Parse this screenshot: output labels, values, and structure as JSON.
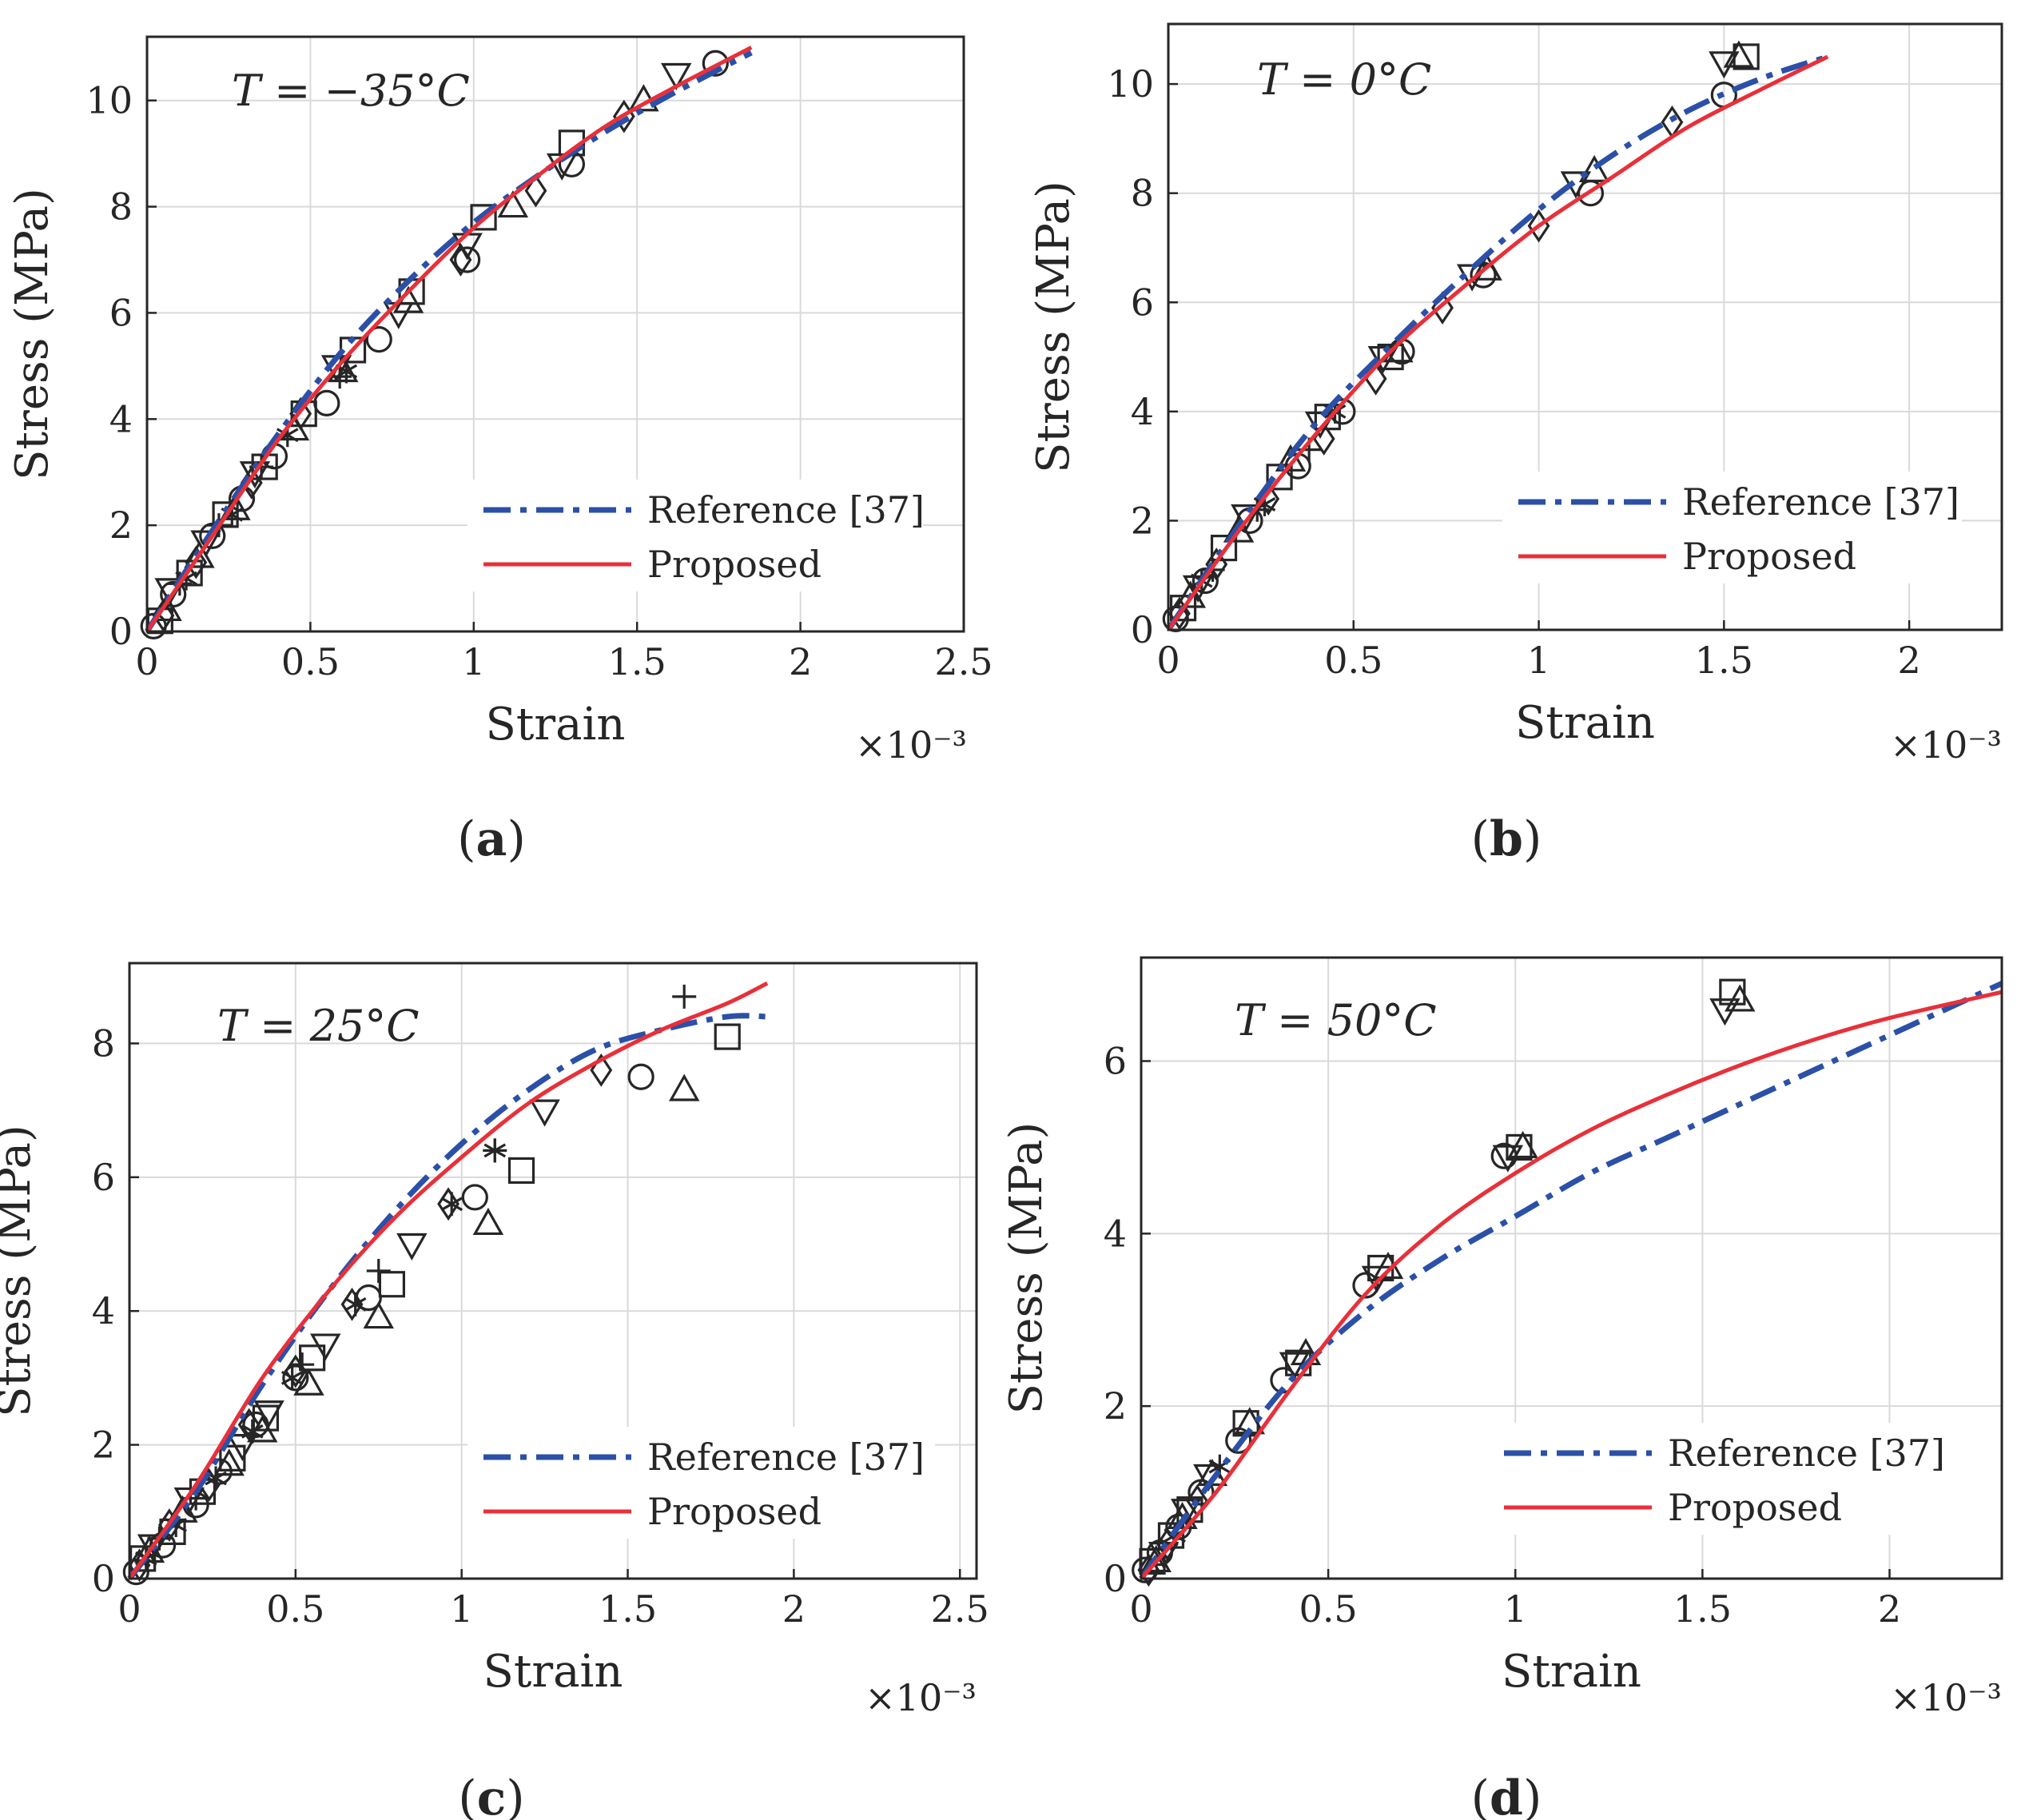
{
  "figure": {
    "panels": [
      "a",
      "b",
      "c",
      "d"
    ]
  },
  "chart_data": [
    {
      "panel": "a",
      "caption_letter": "a",
      "type": "line",
      "title_annotation": "T = −35°C",
      "xlabel": "Strain",
      "ylabel": "Stress (MPa)",
      "x_multiplier": "×10⁻³",
      "xlim": [
        0,
        2.5
      ],
      "ylim": [
        0,
        11.2
      ],
      "xticks": [
        0,
        0.5,
        1,
        1.5,
        2,
        2.5
      ],
      "xtick_labels": [
        "0",
        "0.5",
        "1",
        "1.5",
        "2",
        "2.5"
      ],
      "yticks": [
        0,
        2,
        4,
        6,
        8,
        10
      ],
      "ytick_labels": [
        "0",
        "2",
        "4",
        "6",
        "8",
        "10"
      ],
      "grid": true,
      "legend_position": "bottom-right",
      "series": [
        {
          "name": "Reference [37]",
          "style": "dashdot",
          "color": "#2B50A8",
          "x": [
            0,
            0.2,
            0.4,
            0.6,
            0.8,
            1.0,
            1.2,
            1.4,
            1.6,
            1.85
          ],
          "y": [
            0,
            1.9,
            3.7,
            5.3,
            6.6,
            7.7,
            8.6,
            9.4,
            10.1,
            10.9
          ]
        },
        {
          "name": "Proposed",
          "style": "solid",
          "color": "#E8303A",
          "x": [
            0,
            0.2,
            0.4,
            0.6,
            0.8,
            1.0,
            1.2,
            1.4,
            1.6,
            1.85
          ],
          "y": [
            0,
            1.8,
            3.6,
            5.1,
            6.4,
            7.6,
            8.6,
            9.5,
            10.2,
            11.0
          ]
        }
      ],
      "markers": [
        {
          "m": "o",
          "x": [
            0.02,
            0.08,
            0.2,
            0.29,
            0.39,
            0.55,
            0.71,
            0.98,
            1.3,
            1.74
          ],
          "y": [
            0.1,
            0.7,
            1.8,
            2.5,
            3.3,
            4.3,
            5.5,
            7.0,
            8.8,
            10.7
          ]
        },
        {
          "m": "s",
          "x": [
            0.04,
            0.13,
            0.24,
            0.36,
            0.48,
            0.63,
            0.81,
            1.03,
            1.3
          ],
          "y": [
            0.2,
            1.1,
            2.2,
            3.1,
            4.1,
            5.3,
            6.4,
            7.8,
            9.2
          ]
        },
        {
          "m": "^",
          "x": [
            0.06,
            0.16,
            0.27,
            0.45,
            0.6,
            0.8,
            1.12,
            1.52
          ],
          "y": [
            0.4,
            1.4,
            2.3,
            3.8,
            4.9,
            6.2,
            8.0,
            10.0
          ]
        },
        {
          "m": "v",
          "x": [
            0.07,
            0.18,
            0.33,
            0.58,
            0.77,
            0.98,
            1.27,
            1.62
          ],
          "y": [
            0.8,
            1.7,
            3.0,
            5.0,
            6.0,
            7.3,
            8.8,
            10.5
          ]
        },
        {
          "m": "d",
          "x": [
            0.05,
            0.15,
            0.32,
            0.47,
            0.96,
            1.19,
            1.46
          ],
          "y": [
            0.3,
            1.3,
            2.8,
            4.1,
            7.0,
            8.3,
            9.7
          ]
        },
        {
          "m": "+",
          "x": [
            0.1,
            0.22,
            0.35,
            0.59
          ],
          "y": [
            0.9,
            2.0,
            3.1,
            4.8
          ]
        },
        {
          "m": "*",
          "x": [
            0.12,
            0.26,
            0.43,
            0.61
          ],
          "y": [
            1.0,
            2.2,
            3.7,
            4.9
          ]
        }
      ]
    },
    {
      "panel": "b",
      "caption_letter": "b",
      "type": "line",
      "title_annotation": "T = 0°C",
      "xlabel": "Strain",
      "ylabel": "Stress (MPa)",
      "x_multiplier": "×10⁻³",
      "xlim": [
        0,
        2.25
      ],
      "ylim": [
        0,
        11.1
      ],
      "xticks": [
        0,
        0.5,
        1,
        1.5,
        2
      ],
      "xtick_labels": [
        "0",
        "0.5",
        "1",
        "1.5",
        "2"
      ],
      "yticks": [
        0,
        2,
        4,
        6,
        8,
        10
      ],
      "ytick_labels": [
        "0",
        "2",
        "4",
        "6",
        "8",
        "10"
      ],
      "grid": true,
      "legend_position": "bottom-right",
      "series": [
        {
          "name": "Reference [37]",
          "style": "dashdot",
          "color": "#2B50A8",
          "x": [
            0,
            0.2,
            0.4,
            0.6,
            0.8,
            1.0,
            1.2,
            1.4,
            1.6,
            1.78
          ],
          "y": [
            0,
            2.0,
            3.8,
            5.2,
            6.5,
            7.7,
            8.7,
            9.5,
            10.1,
            10.5
          ]
        },
        {
          "name": "Proposed",
          "style": "solid",
          "color": "#E8303A",
          "x": [
            0,
            0.2,
            0.4,
            0.6,
            0.8,
            1.0,
            1.2,
            1.4,
            1.6,
            1.78
          ],
          "y": [
            0,
            1.9,
            3.6,
            5.1,
            6.3,
            7.4,
            8.3,
            9.2,
            9.9,
            10.5
          ]
        }
      ],
      "markers": [
        {
          "m": "o",
          "x": [
            0.02,
            0.1,
            0.22,
            0.35,
            0.47,
            0.63,
            0.85,
            1.14,
            1.5
          ],
          "y": [
            0.2,
            0.9,
            2.0,
            3.0,
            4.0,
            5.1,
            6.5,
            8.0,
            9.8
          ]
        },
        {
          "m": "s",
          "x": [
            0.04,
            0.15,
            0.3,
            0.43,
            0.6,
            1.56
          ],
          "y": [
            0.4,
            1.5,
            2.8,
            3.9,
            5.0,
            10.5
          ]
        },
        {
          "m": "^",
          "x": [
            0.06,
            0.19,
            0.33,
            0.62,
            0.86,
            1.15,
            1.54
          ],
          "y": [
            0.6,
            1.8,
            3.1,
            5.1,
            6.6,
            8.4,
            10.5
          ]
        },
        {
          "m": "v",
          "x": [
            0.08,
            0.21,
            0.41,
            0.58,
            0.82,
            1.1,
            1.5
          ],
          "y": [
            0.8,
            2.1,
            3.8,
            5.0,
            6.5,
            8.2,
            10.4
          ]
        },
        {
          "m": "d",
          "x": [
            0.03,
            0.13,
            0.27,
            0.42,
            0.56,
            0.74,
            1.0,
            1.36
          ],
          "y": [
            0.3,
            1.2,
            2.4,
            3.5,
            4.6,
            5.9,
            7.4,
            9.3
          ]
        },
        {
          "m": "+",
          "x": [
            0.12,
            0.24,
            0.38
          ],
          "y": [
            1.1,
            2.2,
            3.3
          ]
        },
        {
          "m": "*",
          "x": [
            0.09,
            0.26,
            0.45
          ],
          "y": [
            0.9,
            2.3,
            4.0
          ]
        }
      ]
    },
    {
      "panel": "c",
      "caption_letter": "c",
      "type": "line",
      "title_annotation": "T = 25°C",
      "xlabel": "Strain",
      "ylabel": "Stress (MPa)",
      "x_multiplier": "×10⁻³",
      "xlim": [
        0,
        2.55
      ],
      "ylim": [
        0,
        9.2
      ],
      "xticks": [
        0,
        0.5,
        1,
        1.5,
        2,
        2.5
      ],
      "xtick_labels": [
        "0",
        "0.5",
        "1",
        "1.5",
        "2",
        "2.5"
      ],
      "yticks": [
        0,
        2,
        4,
        6,
        8
      ],
      "ytick_labels": [
        "0",
        "2",
        "4",
        "6",
        "8"
      ],
      "grid": true,
      "legend_position": "bottom-right",
      "series": [
        {
          "name": "Reference [37]",
          "style": "dashdot",
          "color": "#2B50A8",
          "x": [
            0,
            0.2,
            0.4,
            0.6,
            0.8,
            1.0,
            1.2,
            1.4,
            1.6,
            1.8,
            1.92
          ],
          "y": [
            0,
            1.3,
            2.9,
            4.3,
            5.5,
            6.5,
            7.3,
            7.9,
            8.2,
            8.4,
            8.4
          ]
        },
        {
          "name": "Proposed",
          "style": "solid",
          "color": "#E8303A",
          "x": [
            0,
            0.2,
            0.4,
            0.6,
            0.8,
            1.0,
            1.2,
            1.4,
            1.6,
            1.8,
            1.92
          ],
          "y": [
            0,
            1.4,
            3.0,
            4.3,
            5.4,
            6.3,
            7.1,
            7.7,
            8.2,
            8.6,
            8.9
          ]
        }
      ],
      "markers": [
        {
          "m": "o",
          "x": [
            0.02,
            0.1,
            0.2,
            0.27,
            0.38,
            0.5,
            0.72,
            1.04,
            1.54
          ],
          "y": [
            0.1,
            0.5,
            1.1,
            1.6,
            2.3,
            3.0,
            4.2,
            5.7,
            7.5
          ]
        },
        {
          "m": "s",
          "x": [
            0.04,
            0.13,
            0.22,
            0.31,
            0.41,
            0.55,
            0.79,
            1.18,
            1.8
          ],
          "y": [
            0.3,
            0.7,
            1.3,
            1.8,
            2.4,
            3.3,
            4.4,
            6.1,
            8.1
          ]
        },
        {
          "m": "^",
          "x": [
            0.06,
            0.16,
            0.3,
            0.4,
            0.54,
            0.75,
            1.08,
            1.67
          ],
          "y": [
            0.4,
            1.0,
            1.7,
            2.2,
            2.9,
            3.9,
            5.3,
            7.3
          ]
        },
        {
          "m": "v",
          "x": [
            0.07,
            0.18,
            0.34,
            0.42,
            0.59,
            0.85,
            1.25
          ],
          "y": [
            0.5,
            1.2,
            2.0,
            2.5,
            3.5,
            5.0,
            7.0
          ]
        },
        {
          "m": "d",
          "x": [
            0.03,
            0.12,
            0.24,
            0.36,
            0.5,
            0.67,
            0.96,
            1.42
          ],
          "y": [
            0.2,
            0.8,
            1.4,
            2.3,
            3.1,
            4.1,
            5.6,
            7.6
          ]
        },
        {
          "m": "+",
          "x": [
            0.09,
            0.2,
            0.52,
            0.75,
            1.1,
            1.67
          ],
          "y": [
            0.6,
            1.2,
            3.2,
            4.6,
            6.4,
            8.7
          ]
        },
        {
          "m": "*",
          "x": [
            0.05,
            0.14,
            0.26,
            0.37,
            0.49,
            0.68,
            0.97,
            1.1
          ],
          "y": [
            0.3,
            0.8,
            1.5,
            2.2,
            3.0,
            4.1,
            5.6,
            6.4
          ]
        }
      ]
    },
    {
      "panel": "d",
      "caption_letter": "d",
      "type": "line",
      "title_annotation": "T = 50°C",
      "xlabel": "Strain",
      "ylabel": "Stress (MPa)",
      "x_multiplier": "×10⁻³",
      "xlim": [
        0,
        2.3
      ],
      "ylim": [
        0,
        7.2
      ],
      "xticks": [
        0,
        0.5,
        1,
        1.5,
        2
      ],
      "xtick_labels": [
        "0",
        "0.5",
        "1",
        "1.5",
        "2"
      ],
      "yticks": [
        0,
        2,
        4,
        6
      ],
      "ytick_labels": [
        "0",
        "2",
        "4",
        "6"
      ],
      "grid": true,
      "legend_position": "bottom-right",
      "series": [
        {
          "name": "Reference [37]",
          "style": "dashdot",
          "color": "#2B50A8",
          "x": [
            0,
            0.2,
            0.4,
            0.6,
            0.8,
            1.0,
            1.2,
            1.4,
            1.6,
            1.8,
            2.0,
            2.3
          ],
          "y": [
            0,
            1.2,
            2.3,
            3.1,
            3.7,
            4.2,
            4.7,
            5.1,
            5.5,
            5.9,
            6.3,
            6.9
          ]
        },
        {
          "name": "Proposed",
          "style": "solid",
          "color": "#E8303A",
          "x": [
            0,
            0.2,
            0.4,
            0.6,
            0.8,
            1.0,
            1.2,
            1.4,
            1.6,
            1.8,
            2.0,
            2.3
          ],
          "y": [
            0,
            1.0,
            2.2,
            3.3,
            4.1,
            4.7,
            5.2,
            5.6,
            5.95,
            6.25,
            6.5,
            6.8
          ]
        }
      ],
      "markers": [
        {
          "m": "o",
          "x": [
            0.01,
            0.05,
            0.1,
            0.16,
            0.26,
            0.38,
            0.6,
            0.97
          ],
          "y": [
            0.1,
            0.3,
            0.6,
            1.0,
            1.6,
            2.3,
            3.4,
            4.9
          ]
        },
        {
          "m": "s",
          "x": [
            0.03,
            0.08,
            0.13,
            0.28,
            0.42,
            0.64,
            1.01,
            1.58
          ],
          "y": [
            0.2,
            0.5,
            0.8,
            1.8,
            2.5,
            3.6,
            5.0,
            6.8
          ]
        },
        {
          "m": "^",
          "x": [
            0.04,
            0.11,
            0.19,
            0.29,
            0.44,
            0.66,
            1.02,
            1.6
          ],
          "y": [
            0.2,
            0.7,
            1.2,
            1.8,
            2.6,
            3.6,
            5.0,
            6.7
          ]
        },
        {
          "m": "v",
          "x": [
            0.06,
            0.12,
            0.18,
            0.41,
            0.63,
            0.98,
            1.56
          ],
          "y": [
            0.3,
            0.8,
            1.2,
            2.5,
            3.5,
            4.9,
            6.6
          ]
        },
        {
          "m": "d",
          "x": [
            0.02,
            0.07,
            0.15
          ],
          "y": [
            0.1,
            0.4,
            0.9
          ]
        },
        {
          "m": "*",
          "x": [
            0.09,
            0.21
          ],
          "y": [
            0.5,
            1.3
          ]
        }
      ]
    }
  ]
}
